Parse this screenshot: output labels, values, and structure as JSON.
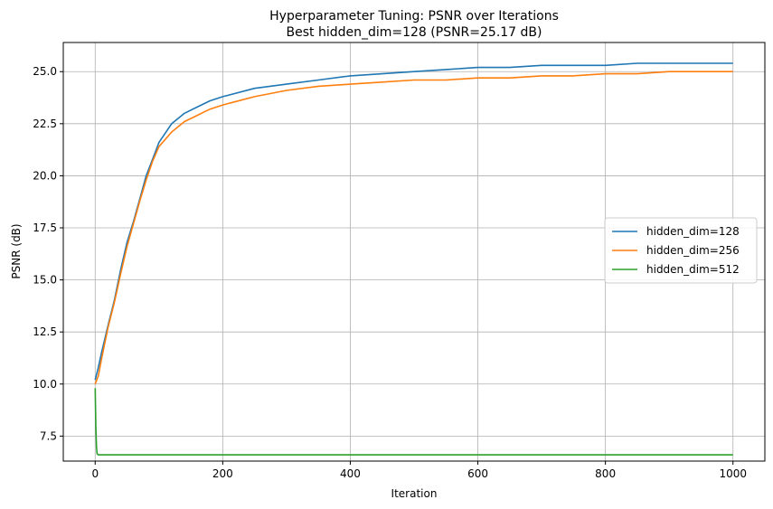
{
  "chart_data": {
    "type": "line",
    "title": "Hyperparameter Tuning: PSNR over Iterations",
    "subtitle": "Best hidden_dim=128 (PSNR=25.17 dB)",
    "xlabel": "Iteration",
    "ylabel": "PSNR (dB)",
    "xlim": [
      -50,
      1050
    ],
    "ylim": [
      6.3,
      26.4
    ],
    "xticks": [
      0,
      200,
      400,
      600,
      800,
      1000
    ],
    "yticks": [
      7.5,
      10.0,
      12.5,
      15.0,
      17.5,
      20.0,
      22.5,
      25.0
    ],
    "xtick_labels": [
      "0",
      "200",
      "400",
      "600",
      "800",
      "1000"
    ],
    "ytick_labels": [
      "7.5",
      "10.0",
      "12.5",
      "15.0",
      "17.5",
      "20.0",
      "22.5",
      "25.0"
    ],
    "grid": true,
    "legend": "center-right",
    "series": [
      {
        "name": "hidden_dim=128",
        "color": "#1f77b4",
        "x": [
          0,
          5,
          10,
          20,
          30,
          40,
          50,
          60,
          70,
          80,
          90,
          100,
          120,
          140,
          160,
          180,
          200,
          250,
          300,
          350,
          400,
          450,
          500,
          550,
          600,
          650,
          700,
          750,
          800,
          850,
          900,
          950,
          1000
        ],
        "y": [
          10.2,
          10.8,
          11.5,
          12.8,
          14.0,
          15.5,
          16.8,
          17.8,
          18.9,
          20.0,
          20.8,
          21.6,
          22.5,
          23.0,
          23.3,
          23.6,
          23.8,
          24.2,
          24.4,
          24.6,
          24.8,
          24.9,
          25.0,
          25.1,
          25.2,
          25.2,
          25.3,
          25.3,
          25.3,
          25.4,
          25.4,
          25.4,
          25.4
        ]
      },
      {
        "name": "hidden_dim=256",
        "color": "#ff7f0e",
        "x": [
          0,
          5,
          10,
          20,
          30,
          40,
          50,
          60,
          70,
          80,
          90,
          100,
          120,
          140,
          160,
          180,
          200,
          250,
          300,
          350,
          400,
          450,
          500,
          550,
          600,
          650,
          700,
          750,
          800,
          850,
          900,
          950,
          1000
        ],
        "y": [
          10.0,
          10.4,
          11.2,
          12.7,
          13.9,
          15.3,
          16.6,
          17.7,
          18.8,
          19.8,
          20.7,
          21.4,
          22.1,
          22.6,
          22.9,
          23.2,
          23.4,
          23.8,
          24.1,
          24.3,
          24.4,
          24.5,
          24.6,
          24.6,
          24.7,
          24.7,
          24.8,
          24.8,
          24.9,
          24.9,
          25.0,
          25.0,
          25.0
        ]
      },
      {
        "name": "hidden_dim=512",
        "color": "#2ca02c",
        "x": [
          0,
          1,
          2,
          3,
          5,
          10,
          50,
          100,
          200,
          300,
          400,
          500,
          600,
          700,
          800,
          900,
          1000
        ],
        "y": [
          9.8,
          8.0,
          7.0,
          6.65,
          6.6,
          6.6,
          6.6,
          6.6,
          6.6,
          6.6,
          6.6,
          6.6,
          6.6,
          6.6,
          6.6,
          6.6,
          6.6
        ]
      }
    ]
  }
}
